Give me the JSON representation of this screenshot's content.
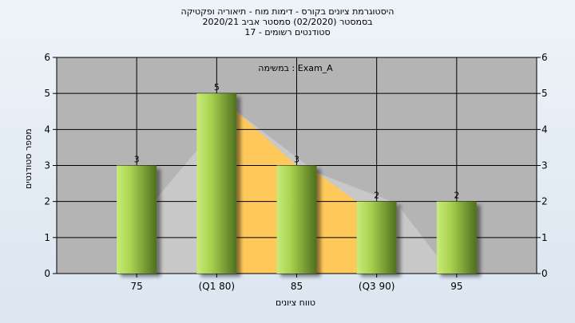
{
  "chart_data": {
    "type": "bar",
    "title_lines": [
      "היסטוגרמת ציונים בקורס - דימות מוח - תיאוריה ופקטיקה",
      "בסמסטר  (02/2020)  סמסטר אביב 2020/21",
      "סטודנטים רשומים - 17"
    ],
    "xlabel": "טווח ציונים",
    "ylabel": "מספר סטודנטים",
    "legend": "במשימה : Exam_A",
    "categories": [
      "75",
      "(Q1 80)",
      "85",
      "(Q3 90)",
      "95"
    ],
    "values": [
      3,
      5,
      3,
      2,
      2
    ],
    "ylim": [
      0,
      6
    ],
    "yticks": [
      "0",
      "1",
      "2",
      "3",
      "4",
      "5",
      "6"
    ],
    "grid": true,
    "colors": {
      "plot_bg": "#b4b4b4",
      "bar_light": "#c8ec7a",
      "bar_dark": "#4f6f1e",
      "area_orange": "#ffc85a",
      "area_gray": "#c8c8c8"
    }
  }
}
